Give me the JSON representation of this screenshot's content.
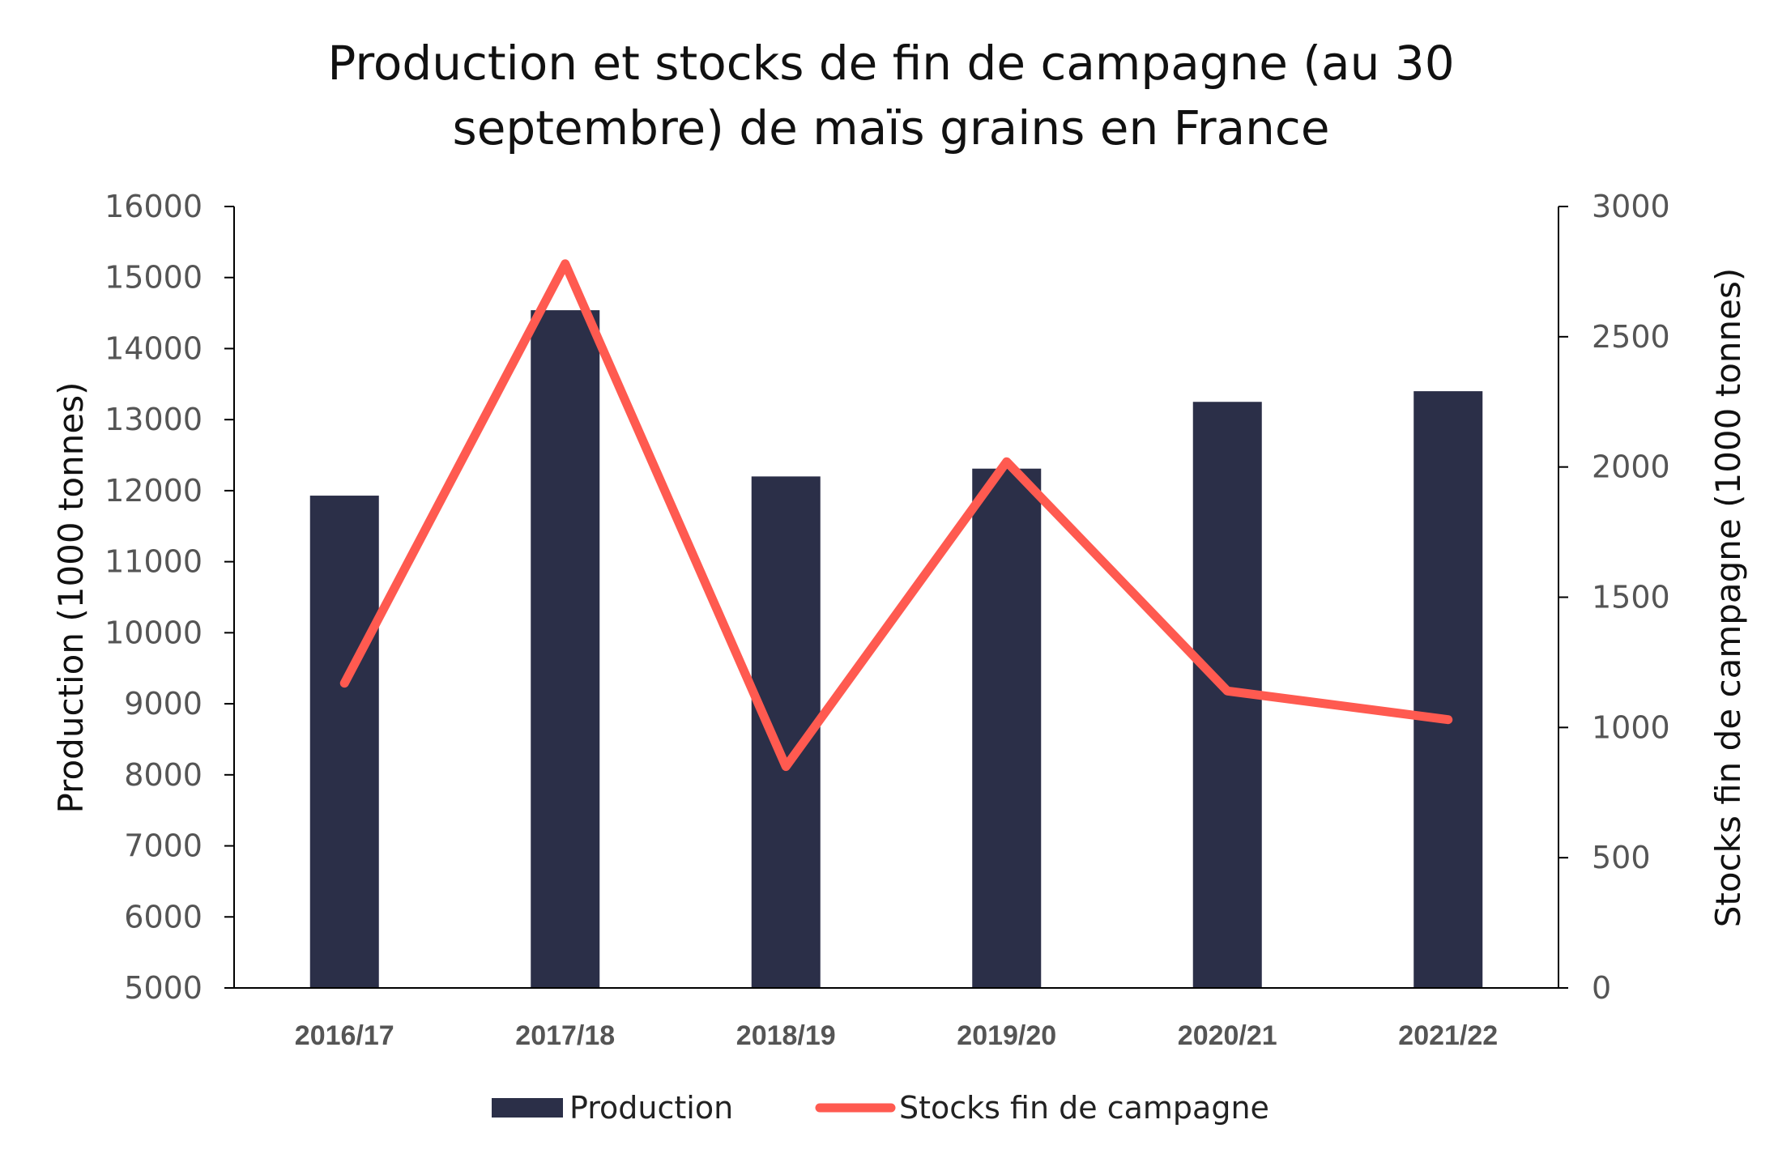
{
  "chart_data": {
    "type": "bar",
    "title_lines": [
      "Production et stocks de fin de campagne (au 30",
      "septembre) de maïs grains en France"
    ],
    "categories": [
      "2016/17",
      "2017/18",
      "2018/19",
      "2019/20",
      "2020/21",
      "2021/22"
    ],
    "series": [
      {
        "name": "Production",
        "type": "bar",
        "axis": "left",
        "color": "#2b2f48",
        "values": [
          11930,
          14540,
          12200,
          12310,
          13250,
          13400
        ]
      },
      {
        "name": "Stocks fin de campagne",
        "type": "line",
        "axis": "right",
        "color": "#ff5a50",
        "values": [
          1170,
          2780,
          850,
          2020,
          1140,
          1030
        ]
      }
    ],
    "y_left": {
      "label": "Production (1000 tonnes)",
      "min": 5000,
      "max": 16000,
      "step": 1000,
      "ticks": [
        "5000",
        "6000",
        "7000",
        "8000",
        "9000",
        "10000",
        "11000",
        "12000",
        "13000",
        "14000",
        "15000",
        "16000"
      ]
    },
    "y_right": {
      "label": "Stocks  fin de campagne (1000 tonnes)",
      "min": 0,
      "max": 3000,
      "step": 500,
      "ticks": [
        "0",
        "500",
        "1000",
        "1500",
        "2000",
        "2500",
        "3000"
      ]
    },
    "grid": false,
    "legend_position": "bottom"
  }
}
